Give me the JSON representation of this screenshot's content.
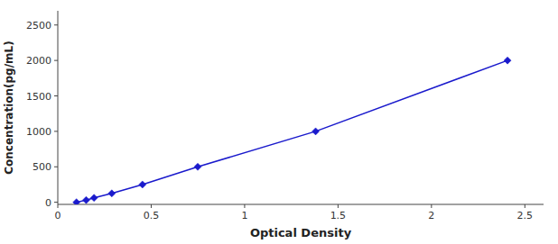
{
  "chart_data": {
    "type": "line",
    "x": [
      0.1,
      0.152,
      0.194,
      0.289,
      0.453,
      0.749,
      1.38,
      2.407
    ],
    "values": [
      0,
      31.25,
      62.5,
      125,
      250,
      500,
      1000,
      2000
    ],
    "color": "#1a1acc",
    "marker": "diamond",
    "xlabel": "Optical Density",
    "ylabel": "Concentration(pg/mL)",
    "xlim": [
      0.0,
      2.6
    ],
    "ylim": [
      -30,
      2700
    ],
    "xticks": [
      0,
      0.5,
      1,
      1.5,
      2,
      2.5
    ],
    "yticks": [
      0,
      500,
      1000,
      1500,
      2000,
      2500
    ],
    "grid": false
  }
}
